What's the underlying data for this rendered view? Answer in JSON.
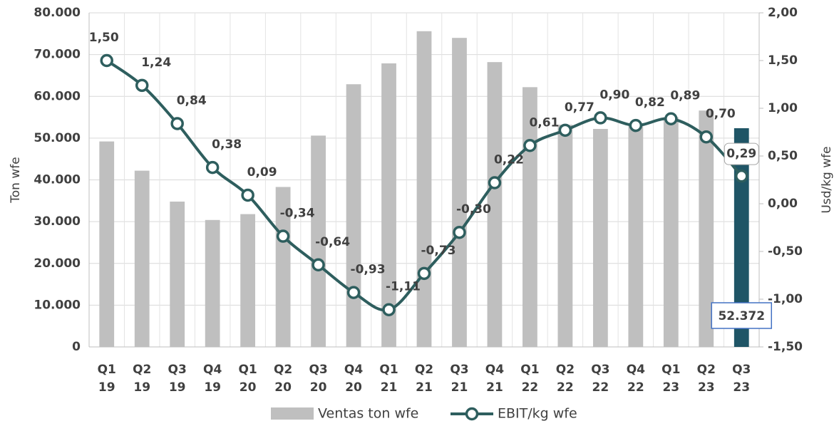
{
  "chart_data": {
    "type": "bar_line",
    "categories": [
      "Q1 19",
      "Q2 19",
      "Q3 19",
      "Q4 19",
      "Q1 20",
      "Q2 20",
      "Q3 20",
      "Q4 20",
      "Q1 21",
      "Q2 21",
      "Q3 21",
      "Q4 21",
      "Q1 22",
      "Q2 22",
      "Q3 22",
      "Q4 22",
      "Q1 23",
      "Q2 23",
      "Q3 23"
    ],
    "ylabel": "Ton wfe",
    "y2label": "Usd/kg wfe",
    "ylim": [
      0,
      80000
    ],
    "yticks": [
      0,
      {
        "value": 10000,
        "label": "10.000"
      },
      {
        "value": 20000,
        "label": "20.000"
      },
      {
        "value": 30000,
        "label": "30.000"
      },
      {
        "value": 40000,
        "label": "40.000"
      },
      {
        "value": 50000,
        "label": "50.000"
      },
      {
        "value": 60000,
        "label": "60.000"
      },
      {
        "value": 70000,
        "label": "70.000"
      },
      {
        "value": 80000,
        "label": "80.000"
      }
    ],
    "y2lim": [
      -1.5,
      2
    ],
    "y2ticks": [
      {
        "value": -1.5,
        "label": "-1,50"
      },
      {
        "value": -1,
        "label": "-1,00"
      },
      {
        "value": -0.5,
        "label": "-0,50"
      },
      {
        "value": 0,
        "label": "0,00"
      },
      {
        "value": 0.5,
        "label": "0,50"
      },
      {
        "value": 1,
        "label": "1,00"
      },
      {
        "value": 1.5,
        "label": "1,50"
      },
      {
        "value": 2,
        "label": "2,00"
      }
    ],
    "grid": true,
    "series": [
      {
        "name": "Ventas ton wfe",
        "type": "bar",
        "color": "#bfbfbf",
        "colors": [
          "#bfbfbf",
          "#bfbfbf",
          "#bfbfbf",
          "#bfbfbf",
          "#bfbfbf",
          "#bfbfbf",
          "#bfbfbf",
          "#bfbfbf",
          "#bfbfbf",
          "#bfbfbf",
          "#bfbfbf",
          "#bfbfbf",
          "#bfbfbf",
          "#bfbfbf",
          "#bfbfbf",
          "#bfbfbf",
          "#bfbfbf",
          "#bfbfbf",
          "#1f5566"
        ],
        "values": [
          49200,
          42200,
          34800,
          30400,
          31800,
          38300,
          50600,
          62900,
          67900,
          75600,
          74000,
          68200,
          62200,
          53200,
          52200,
          53000,
          55000,
          56600,
          52372
        ],
        "value_labels": [
          null,
          null,
          null,
          null,
          null,
          null,
          null,
          null,
          null,
          null,
          null,
          null,
          null,
          null,
          null,
          null,
          null,
          null,
          "52.372"
        ]
      },
      {
        "name": "EBIT/kg wfe",
        "type": "line",
        "axis": "y2",
        "color": "#2e5e5e",
        "values": [
          1.5,
          1.24,
          0.84,
          0.38,
          0.09,
          -0.34,
          -0.64,
          -0.93,
          -1.11,
          -0.73,
          -0.3,
          0.22,
          0.61,
          0.77,
          0.9,
          0.82,
          0.89,
          0.7,
          0.29
        ],
        "value_labels": [
          "1,50",
          "1,24",
          "0,84",
          "0,38",
          "0,09",
          "-0,34",
          "-0,64",
          "-0,93",
          "-1,11",
          "-0,73",
          "-0,30",
          "0,22",
          "0,61",
          "0,77",
          "0,90",
          "0,82",
          "0,89",
          "0,70",
          "0,29"
        ]
      }
    ]
  }
}
